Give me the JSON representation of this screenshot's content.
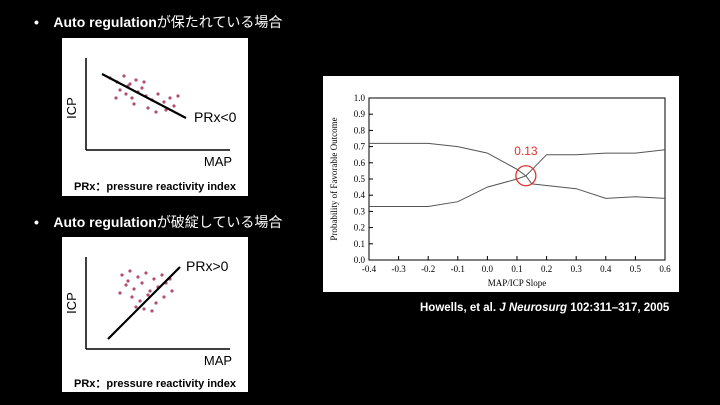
{
  "slide": {
    "bullet1": {
      "latin": "Auto regulation",
      "jp": "が保たれている場合"
    },
    "bullet2": {
      "latin": "Auto regulation",
      "jp": "が破綻している場合"
    },
    "panel1": {
      "y_label": "ICP",
      "x_label": "MAP",
      "line_label": "PRx<0",
      "caption": "PRx：pressure reactivity index"
    },
    "panel2": {
      "y_label": "ICP",
      "x_label": "MAP",
      "line_label": "PRx>0",
      "caption": "PRx：pressure reactivity index"
    },
    "citation": {
      "authors": "Howells, et al. ",
      "journal": "J Neurosurg",
      "ref": " 102:311–317, 2005"
    },
    "colors": {
      "dot": "#b05070",
      "highlight": "#e03030"
    }
  },
  "chart_data": {
    "type": "line",
    "xlabel": "MAP/ICP Slope",
    "ylabel": "Probability of Favorable Outcome",
    "xlim": [
      -0.4,
      0.6
    ],
    "ylim": [
      0,
      1.0
    ],
    "x_ticks": [
      "-0.4",
      "-0.3",
      "-0.2",
      "-0.1",
      "0.0",
      "0.1",
      "0.2",
      "0.3",
      "0.4",
      "0.5",
      "0.6"
    ],
    "y_ticks": [
      "0.0",
      "0.1",
      "0.2",
      "0.3",
      "0.4",
      "0.5",
      "0.6",
      "0.7",
      "0.8",
      "0.9",
      "1.0"
    ],
    "series": [
      {
        "x": [
          -0.4,
          -0.2,
          -0.1,
          0.0,
          0.1,
          0.13,
          0.15,
          0.3,
          0.4,
          0.5,
          0.6
        ],
        "y": [
          0.72,
          0.72,
          0.7,
          0.66,
          0.56,
          0.52,
          0.47,
          0.44,
          0.38,
          0.39,
          0.38
        ]
      },
      {
        "x": [
          -0.4,
          -0.2,
          -0.1,
          0.0,
          0.1,
          0.13,
          0.2,
          0.3,
          0.4,
          0.5,
          0.6
        ],
        "y": [
          0.33,
          0.33,
          0.36,
          0.45,
          0.5,
          0.52,
          0.65,
          0.65,
          0.66,
          0.66,
          0.68
        ]
      }
    ],
    "annotation": {
      "label": "0.13",
      "x": 0.13,
      "y": 0.52
    }
  }
}
